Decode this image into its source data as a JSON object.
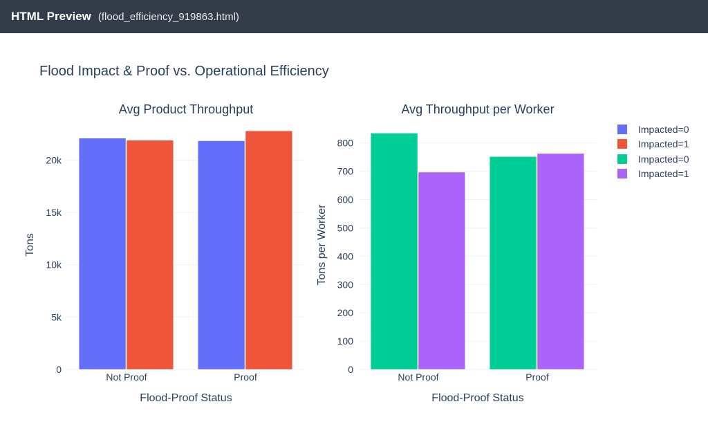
{
  "window": {
    "app_title": "HTML Preview",
    "file_name": "(flood_efficiency_919863.html)"
  },
  "figure_title": "Flood Impact & Proof vs. Operational Efficiency",
  "colors": {
    "impacted0_left": "#636efa",
    "impacted1_left": "#ef553b",
    "impacted0_right": "#00cc96",
    "impacted1_right": "#ab63fa",
    "text": "#2a3f5f",
    "grid": "#ebf0f8"
  },
  "legend": [
    {
      "label": "Impacted=0",
      "color": "#636efa"
    },
    {
      "label": "Impacted=1",
      "color": "#ef553b"
    },
    {
      "label": "Impacted=0",
      "color": "#00cc96"
    },
    {
      "label": "Impacted=1",
      "color": "#ab63fa"
    }
  ],
  "chart_data": [
    {
      "type": "bar",
      "title": "Avg Product Throughput",
      "xlabel": "Flood-Proof Status",
      "ylabel": "Tons",
      "categories": [
        "Not Proof",
        "Proof"
      ],
      "ylim": [
        0,
        23800
      ],
      "yticks": [
        0,
        5000,
        10000,
        15000,
        20000
      ],
      "ytick_labels": [
        "0",
        "5k",
        "10k",
        "15k",
        "20k"
      ],
      "series": [
        {
          "name": "Impacted=0",
          "color": "#636efa",
          "values": [
            22100,
            21850
          ]
        },
        {
          "name": "Impacted=1",
          "color": "#ef553b",
          "values": [
            21900,
            22800
          ]
        }
      ]
    },
    {
      "type": "bar",
      "title": "Avg Throughput per Worker",
      "xlabel": "Flood-Proof Status",
      "ylabel": "Tons per Worker",
      "categories": [
        "Not Proof",
        "Proof"
      ],
      "ylim": [
        0,
        880
      ],
      "yticks": [
        0,
        100,
        200,
        300,
        400,
        500,
        600,
        700,
        800
      ],
      "ytick_labels": [
        "0",
        "100",
        "200",
        "300",
        "400",
        "500",
        "600",
        "700",
        "800"
      ],
      "series": [
        {
          "name": "Impacted=0",
          "color": "#00cc96",
          "values": [
            835,
            752
          ]
        },
        {
          "name": "Impacted=1",
          "color": "#ab63fa",
          "values": [
            697,
            763
          ]
        }
      ]
    }
  ]
}
